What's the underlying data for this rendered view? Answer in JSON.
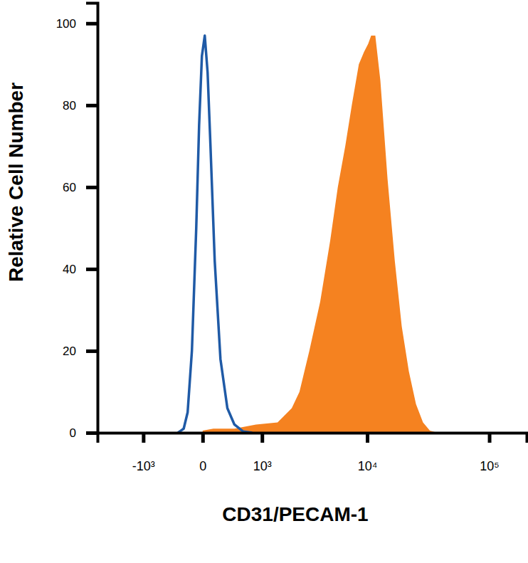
{
  "chart_data": {
    "type": "histogram",
    "x_label": "CD31/PECAM-1",
    "y_label": "Relative Cell Number",
    "log": "x",
    "xlim": [
      -3000,
      200000
    ],
    "xticks": [
      {
        "value": -1000,
        "label": "-10³"
      },
      0,
      {
        "value": 1000,
        "label": "10³"
      },
      {
        "value": 10000,
        "label": "10⁴"
      },
      {
        "value": 100000,
        "label": "10⁵"
      }
    ],
    "ylim": [
      0,
      105
    ],
    "yticks": [
      0,
      20,
      40,
      60,
      80,
      100
    ],
    "series": [
      {
        "type": "area",
        "color": "#f58220",
        "x": [
          0,
          110,
          400,
          840,
          1500,
          2100,
          2500,
          3100,
          3900,
          4800,
          5600,
          6500,
          7400,
          8500,
          9400,
          10200,
          10800,
          11700,
          12900,
          14800,
          17000,
          19400,
          22200,
          25400,
          29000,
          33000,
          38000
        ],
        "values": [
          0.5,
          1,
          1,
          2,
          2.5,
          6,
          10,
          20,
          32,
          47,
          60,
          70,
          80,
          90,
          93,
          95,
          97,
          97,
          86,
          62,
          42,
          26,
          15,
          7,
          2.5,
          0.5,
          0
        ]
      },
      {
        "type": "line",
        "color": "#1f5aa6",
        "x": [
          -290,
          -210,
          -160,
          -110,
          -63,
          -34,
          -7,
          20,
          48,
          78,
          125,
          195,
          290,
          400,
          560,
          750
        ],
        "values": [
          0,
          1,
          5,
          20,
          50,
          75,
          92,
          97,
          88,
          70,
          42,
          18,
          6,
          2,
          0.3,
          0
        ]
      }
    ]
  }
}
